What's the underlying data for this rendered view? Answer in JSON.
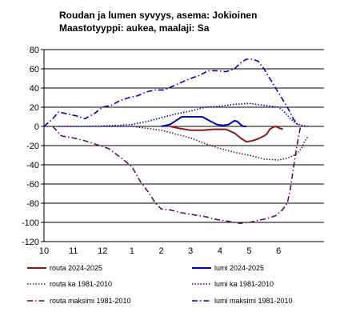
{
  "chart_data": {
    "type": "line",
    "title": "Roudan ja lumen syvyys, asema: Jokioinen",
    "subtitle": "Maastotyyppi: aukea, maalaji: Sa",
    "xlabel": "",
    "ylabel": "",
    "xlim": [
      10,
      6.5
    ],
    "ylim": [
      -120,
      80
    ],
    "yticks": [
      80,
      60,
      40,
      20,
      0,
      -20,
      -40,
      -60,
      -80,
      -100,
      -120
    ],
    "xtick_labels": [
      "10",
      "11",
      "12",
      "1",
      "2",
      "3",
      "4",
      "5",
      "6"
    ],
    "grid": "horizontal",
    "legend_position": "bottom",
    "series": [
      {
        "name": "routa 2024-2025",
        "color": "#8b1a1a",
        "style": "solid",
        "points": [
          [
            14.3,
            0
          ],
          [
            14.6,
            -2
          ],
          [
            15.0,
            -4
          ],
          [
            15.4,
            -4
          ],
          [
            15.8,
            -3
          ],
          [
            16.2,
            -3
          ],
          [
            16.5,
            -7
          ],
          [
            16.7,
            -12
          ],
          [
            16.9,
            -16
          ],
          [
            17.1,
            -15
          ],
          [
            17.3,
            -13
          ],
          [
            17.5,
            -10
          ],
          [
            17.6,
            -8
          ],
          [
            17.7,
            -3
          ],
          [
            17.8,
            -1
          ],
          [
            17.9,
            0
          ],
          [
            18.05,
            -2
          ],
          [
            18.15,
            -3
          ]
        ]
      },
      {
        "name": "lumi 2024-2025",
        "color": "#0000cc",
        "style": "solid",
        "points": [
          [
            14.0,
            0
          ],
          [
            14.3,
            2
          ],
          [
            14.5,
            6
          ],
          [
            14.7,
            10
          ],
          [
            15.1,
            10
          ],
          [
            15.4,
            10
          ],
          [
            15.7,
            5
          ],
          [
            15.9,
            2
          ],
          [
            16.1,
            1
          ],
          [
            16.3,
            2
          ],
          [
            16.5,
            6
          ],
          [
            16.6,
            5
          ],
          [
            16.7,
            2
          ],
          [
            16.8,
            0
          ],
          [
            16.9,
            0
          ]
        ]
      },
      {
        "name": "routa ka 1981-2010",
        "color": "#5b0f5b",
        "style": "dotted",
        "points": [
          [
            12.0,
            0
          ],
          [
            13.0,
            0
          ],
          [
            13.5,
            -2
          ],
          [
            14.0,
            -4
          ],
          [
            14.5,
            -8
          ],
          [
            15.0,
            -12
          ],
          [
            15.5,
            -18
          ],
          [
            16.0,
            -23
          ],
          [
            16.5,
            -27
          ],
          [
            17.0,
            -30
          ],
          [
            17.5,
            -34
          ],
          [
            18.0,
            -35
          ],
          [
            18.3,
            -33
          ],
          [
            18.6,
            -29
          ],
          [
            18.8,
            -22
          ],
          [
            18.9,
            -15
          ],
          [
            19.0,
            -11
          ]
        ]
      },
      {
        "name": "lumi ka 1981-2010",
        "color": "#0000cc",
        "style": "dotted",
        "points": [
          [
            10.5,
            0
          ],
          [
            11.5,
            0
          ],
          [
            12.5,
            1
          ],
          [
            13.0,
            2
          ],
          [
            13.5,
            5
          ],
          [
            14.0,
            9
          ],
          [
            14.5,
            13
          ],
          [
            15.0,
            16
          ],
          [
            15.5,
            20
          ],
          [
            16.0,
            21
          ],
          [
            16.5,
            23
          ],
          [
            17.0,
            24
          ],
          [
            17.5,
            22
          ],
          [
            18.0,
            20
          ],
          [
            18.2,
            15
          ],
          [
            18.4,
            8
          ],
          [
            18.6,
            3
          ],
          [
            18.8,
            1
          ],
          [
            19.0,
            0
          ]
        ]
      },
      {
        "name": "routa maksimi 1981-2010",
        "color": "#5b0f5b",
        "style": "dashdot",
        "points": [
          [
            10.3,
            0
          ],
          [
            10.6,
            -10
          ],
          [
            11.0,
            -12
          ],
          [
            11.4,
            -15
          ],
          [
            11.8,
            -19
          ],
          [
            12.2,
            -23
          ],
          [
            12.6,
            -32
          ],
          [
            13.0,
            -42
          ],
          [
            13.3,
            -58
          ],
          [
            13.6,
            -70
          ],
          [
            13.8,
            -80
          ],
          [
            14.0,
            -86
          ],
          [
            14.3,
            -87
          ],
          [
            14.7,
            -90
          ],
          [
            15.1,
            -92
          ],
          [
            15.5,
            -94
          ],
          [
            15.9,
            -97
          ],
          [
            16.3,
            -99
          ],
          [
            16.7,
            -101
          ],
          [
            17.0,
            -100
          ],
          [
            17.3,
            -98
          ],
          [
            17.6,
            -96
          ],
          [
            17.9,
            -93
          ],
          [
            18.1,
            -88
          ],
          [
            18.3,
            -80
          ],
          [
            18.4,
            -65
          ],
          [
            18.5,
            -45
          ],
          [
            18.6,
            -25
          ],
          [
            18.7,
            -8
          ],
          [
            18.75,
            0
          ]
        ]
      },
      {
        "name": "lumi maksimi 1981-2010",
        "color": "#0000cc",
        "style": "dashdot",
        "points": [
          [
            10.0,
            0
          ],
          [
            10.3,
            8
          ],
          [
            10.5,
            15
          ],
          [
            10.8,
            13
          ],
          [
            11.1,
            11
          ],
          [
            11.4,
            8
          ],
          [
            11.7,
            13
          ],
          [
            12.0,
            20
          ],
          [
            12.3,
            22
          ],
          [
            12.6,
            27
          ],
          [
            12.9,
            30
          ],
          [
            13.2,
            32
          ],
          [
            13.5,
            36
          ],
          [
            13.8,
            38
          ],
          [
            14.1,
            38
          ],
          [
            14.4,
            42
          ],
          [
            14.7,
            46
          ],
          [
            15.0,
            50
          ],
          [
            15.3,
            53
          ],
          [
            15.6,
            58
          ],
          [
            15.9,
            58
          ],
          [
            16.2,
            57
          ],
          [
            16.5,
            60
          ],
          [
            16.7,
            66
          ],
          [
            16.9,
            70
          ],
          [
            17.1,
            70
          ],
          [
            17.3,
            68
          ],
          [
            17.5,
            60
          ],
          [
            17.7,
            50
          ],
          [
            17.9,
            40
          ],
          [
            18.1,
            30
          ],
          [
            18.3,
            20
          ],
          [
            18.5,
            8
          ],
          [
            18.7,
            0
          ]
        ]
      }
    ]
  }
}
